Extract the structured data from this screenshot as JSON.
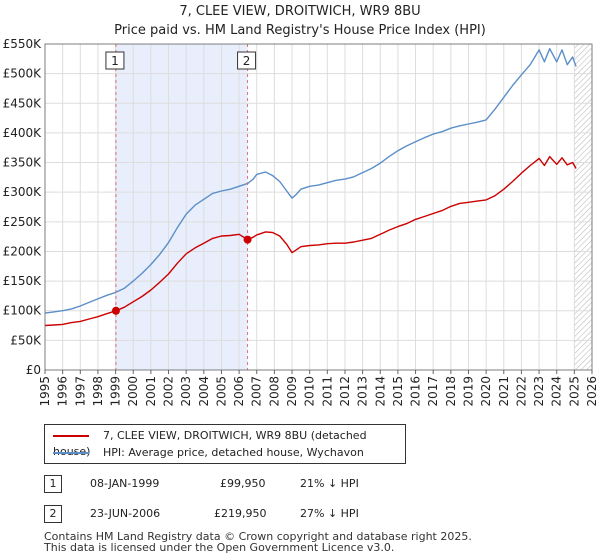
{
  "chart_data": {
    "type": "line",
    "title": "7, CLEE VIEW, DROITWICH, WR9 8BU",
    "subtitle": "Price paid vs. HM Land Registry's House Price Index (HPI)",
    "xlabel": "",
    "ylabel": "",
    "xlim": [
      1995.0,
      2026.0
    ],
    "ylim": [
      0,
      550000
    ],
    "x_ticks": [
      "1995",
      "1996",
      "1997",
      "1998",
      "1999",
      "2000",
      "2001",
      "2002",
      "2003",
      "2004",
      "2005",
      "2006",
      "2007",
      "2008",
      "2009",
      "2010",
      "2011",
      "2012",
      "2013",
      "2014",
      "2015",
      "2016",
      "2017",
      "2018",
      "2019",
      "2020",
      "2021",
      "2022",
      "2023",
      "2024",
      "2025",
      "2026"
    ],
    "y_ticks": [
      {
        "value": 0,
        "label": "£0"
      },
      {
        "value": 50000,
        "label": "£50K"
      },
      {
        "value": 100000,
        "label": "£100K"
      },
      {
        "value": 150000,
        "label": "£150K"
      },
      {
        "value": 200000,
        "label": "£200K"
      },
      {
        "value": 250000,
        "label": "£250K"
      },
      {
        "value": 300000,
        "label": "£300K"
      },
      {
        "value": 350000,
        "label": "£350K"
      },
      {
        "value": 400000,
        "label": "£400K"
      },
      {
        "value": 450000,
        "label": "£450K"
      },
      {
        "value": 500000,
        "label": "£500K"
      },
      {
        "value": 550000,
        "label": "£550K"
      }
    ],
    "grid": true,
    "ownership_period": [
      1999.02,
      2006.48
    ],
    "future_start": 2025.0,
    "series": [
      {
        "name": "7, CLEE VIEW, DROITWICH, WR9 8BU (detached house)",
        "color": "#cc0000",
        "x": [
          1995.0,
          1995.5,
          1996.0,
          1996.5,
          1997.0,
          1997.5,
          1998.0,
          1998.5,
          1999.02,
          1999.5,
          2000.0,
          2000.5,
          2001.0,
          2001.5,
          2002.0,
          2002.5,
          2003.0,
          2003.5,
          2004.0,
          2004.5,
          2005.0,
          2005.5,
          2006.0,
          2006.48,
          2006.8,
          2007.0,
          2007.5,
          2007.9,
          2008.3,
          2008.7,
          2009.0,
          2009.2,
          2009.5,
          2010.0,
          2010.5,
          2011.0,
          2011.5,
          2012.0,
          2012.5,
          2013.0,
          2013.5,
          2014.0,
          2014.5,
          2015.0,
          2015.5,
          2016.0,
          2016.5,
          2017.0,
          2017.5,
          2018.0,
          2018.5,
          2019.0,
          2019.5,
          2020.0,
          2020.5,
          2021.0,
          2021.5,
          2022.0,
          2022.5,
          2022.8,
          2023.0,
          2023.3,
          2023.6,
          2024.0,
          2024.3,
          2024.6,
          2024.9,
          2025.1
        ],
        "values": [
          75000,
          76000,
          77000,
          80000,
          82000,
          86000,
          90000,
          95000,
          99950,
          106000,
          115000,
          124000,
          135000,
          148000,
          162000,
          180000,
          196000,
          206000,
          214000,
          222000,
          226000,
          227000,
          229000,
          219950,
          224000,
          228000,
          233000,
          232000,
          226000,
          212000,
          198000,
          202000,
          208000,
          210000,
          211000,
          213000,
          214000,
          214000,
          216000,
          219000,
          222000,
          229000,
          236000,
          242000,
          247000,
          254000,
          259000,
          264000,
          269000,
          276000,
          281000,
          283000,
          285000,
          287000,
          294000,
          305000,
          318000,
          332000,
          345000,
          352000,
          357000,
          345000,
          360000,
          347000,
          358000,
          346000,
          350000,
          340000
        ]
      },
      {
        "name": "HPI: Average price, detached house, Wychavon",
        "color": "#5b8fc9",
        "x": [
          1995.0,
          1995.5,
          1996.0,
          1996.5,
          1997.0,
          1997.5,
          1998.0,
          1998.5,
          1999.0,
          1999.5,
          2000.0,
          2000.5,
          2001.0,
          2001.5,
          2002.0,
          2002.5,
          2003.0,
          2003.5,
          2004.0,
          2004.5,
          2005.0,
          2005.5,
          2006.0,
          2006.5,
          2006.8,
          2007.0,
          2007.5,
          2007.9,
          2008.3,
          2008.7,
          2009.0,
          2009.2,
          2009.5,
          2010.0,
          2010.5,
          2011.0,
          2011.5,
          2012.0,
          2012.5,
          2013.0,
          2013.5,
          2014.0,
          2014.5,
          2015.0,
          2015.5,
          2016.0,
          2016.5,
          2017.0,
          2017.5,
          2018.0,
          2018.5,
          2019.0,
          2019.5,
          2020.0,
          2020.5,
          2021.0,
          2021.5,
          2022.0,
          2022.5,
          2022.8,
          2023.0,
          2023.3,
          2023.6,
          2024.0,
          2024.3,
          2024.6,
          2024.9,
          2025.1
        ],
        "values": [
          96000,
          98000,
          100000,
          103000,
          108000,
          114000,
          120000,
          126000,
          131000,
          138000,
          150000,
          163000,
          178000,
          195000,
          215000,
          240000,
          263000,
          278000,
          288000,
          298000,
          302000,
          305000,
          310000,
          315000,
          322000,
          330000,
          334000,
          328000,
          318000,
          302000,
          290000,
          295000,
          305000,
          310000,
          312000,
          316000,
          320000,
          322000,
          326000,
          333000,
          340000,
          349000,
          360000,
          370000,
          378000,
          385000,
          392000,
          398000,
          402000,
          408000,
          412000,
          415000,
          418000,
          422000,
          440000,
          460000,
          480000,
          498000,
          515000,
          530000,
          540000,
          520000,
          542000,
          520000,
          540000,
          515000,
          528000,
          512000
        ]
      }
    ],
    "annotations": [
      {
        "label": "1",
        "date": "08-JAN-1999",
        "x": 1999.02,
        "price": "£99,950",
        "value": 99950,
        "hpi": "21% ↓ HPI"
      },
      {
        "label": "2",
        "date": "23-JUN-2006",
        "x": 2006.48,
        "price": "£219,950",
        "value": 219950,
        "hpi": "27% ↓ HPI"
      }
    ]
  },
  "legend": {
    "property": "7, CLEE VIEW, DROITWICH, WR9 8BU (detached house)",
    "hpi": "HPI: Average price, detached house, Wychavon"
  },
  "transactions": [
    {
      "label": "1",
      "date": "08-JAN-1999",
      "price": "£99,950",
      "hpi": "21% ↓ HPI"
    },
    {
      "label": "2",
      "date": "23-JUN-2006",
      "price": "£219,950",
      "hpi": "27% ↓ HPI"
    }
  ],
  "footer": {
    "line1": "Contains HM Land Registry data © Crown copyright and database right 2025.",
    "line2": "This data is licensed under the Open Government Licence v3.0."
  },
  "colors": {
    "property": "#cc0000",
    "hpi": "#5b8fc9",
    "band": "#e8eefb",
    "hatch": "#c9c9c9",
    "grid": "#dddddd",
    "marker_line": "#e07070"
  }
}
